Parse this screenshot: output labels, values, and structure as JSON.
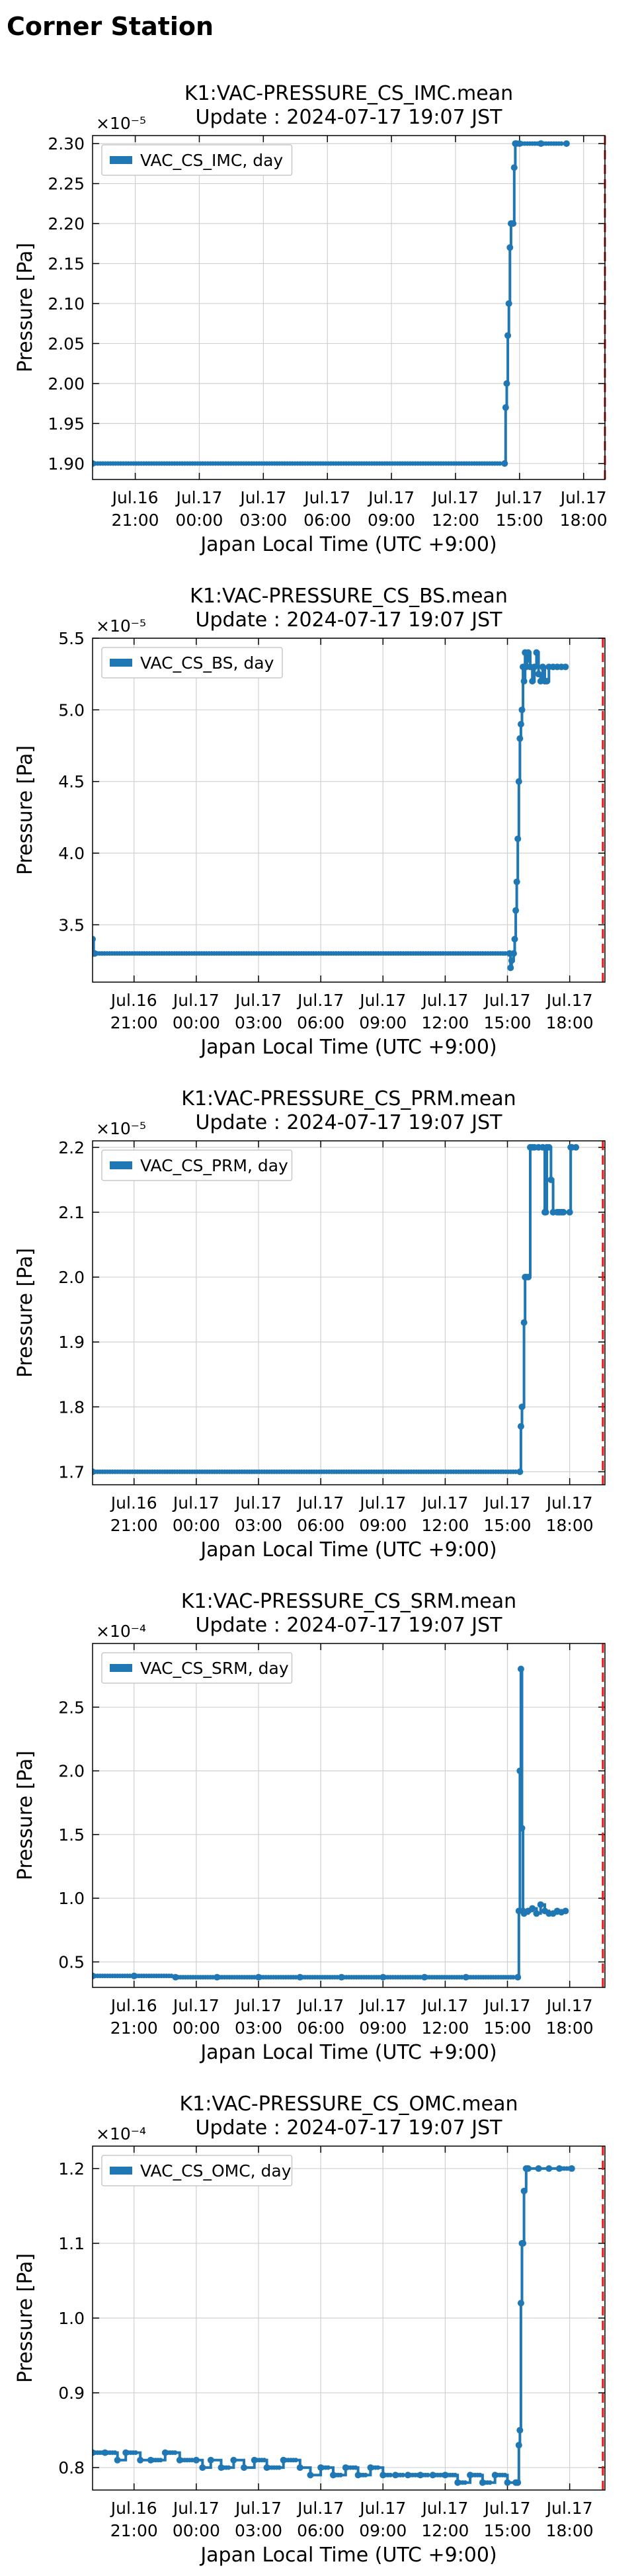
{
  "page": {
    "title": "Corner Station"
  },
  "chart_data": [
    {
      "type": "line",
      "title": "K1:VAC-PRESSURE_CS_IMC.mean",
      "subtitle": "Update : 2024-07-17 19:07 JST",
      "xlabel": "Japan Local Time (UTC +9:00)",
      "ylabel": "Pressure [Pa]",
      "y_exponent": "×10⁻⁵",
      "xlim": [
        0,
        24
      ],
      "ylim": [
        1.88,
        2.31
      ],
      "yticks": [
        1.9,
        1.95,
        2.0,
        2.05,
        2.1,
        2.15,
        2.2,
        2.25,
        2.3
      ],
      "ytick_labels": [
        "1.90",
        "1.95",
        "2.00",
        "2.05",
        "2.10",
        "2.15",
        "2.20",
        "2.25",
        "2.30"
      ],
      "xticks": [
        2,
        5,
        8,
        11,
        14,
        17,
        20,
        23
      ],
      "xtick_labels": [
        [
          "Jul.16",
          "21:00"
        ],
        [
          "Jul.17",
          "00:00"
        ],
        [
          "Jul.17",
          "03:00"
        ],
        [
          "Jul.17",
          "06:00"
        ],
        [
          "Jul.17",
          "09:00"
        ],
        [
          "Jul.17",
          "12:00"
        ],
        [
          "Jul.17",
          "15:00"
        ],
        [
          "Jul.17",
          "18:00"
        ]
      ],
      "current_time": 24.0,
      "grid": true,
      "legend_position": "top-left",
      "series": [
        {
          "name": "VAC_CS_IMC, day",
          "color": "#1f77b4",
          "x": [
            0,
            19.3,
            19.35,
            19.4,
            19.45,
            19.5,
            19.55,
            19.6,
            19.7,
            19.75,
            19.8,
            19.85,
            20,
            21,
            22.2
          ],
          "y": [
            1.9,
            1.9,
            1.97,
            2.0,
            2.06,
            2.1,
            2.17,
            2.2,
            2.2,
            2.27,
            2.3,
            2.3,
            2.3,
            2.3,
            2.3
          ]
        }
      ]
    },
    {
      "type": "line",
      "title": "K1:VAC-PRESSURE_CS_BS.mean",
      "subtitle": "Update : 2024-07-17 19:07 JST",
      "xlabel": "Japan Local Time (UTC +9:00)",
      "ylabel": "Pressure [Pa]",
      "y_exponent": "×10⁻⁵",
      "xlim": [
        0,
        24.7
      ],
      "ylim": [
        3.1,
        5.5
      ],
      "yticks": [
        3.5,
        4.0,
        4.5,
        5.0,
        5.5
      ],
      "ytick_labels": [
        "3.5",
        "4.0",
        "4.5",
        "5.0",
        "5.5"
      ],
      "xticks": [
        2,
        5,
        8,
        11,
        14,
        17,
        20,
        23
      ],
      "xtick_labels": [
        [
          "Jul.16",
          "21:00"
        ],
        [
          "Jul.17",
          "00:00"
        ],
        [
          "Jul.17",
          "03:00"
        ],
        [
          "Jul.17",
          "06:00"
        ],
        [
          "Jul.17",
          "09:00"
        ],
        [
          "Jul.17",
          "12:00"
        ],
        [
          "Jul.17",
          "15:00"
        ],
        [
          "Jul.17",
          "18:00"
        ]
      ],
      "current_time": 24.6,
      "grid": true,
      "legend_position": "top-left",
      "series": [
        {
          "name": "VAC_CS_BS, day",
          "color": "#1f77b4",
          "x": [
            0,
            0.05,
            0.1,
            20.1,
            20.15,
            20.2,
            20.3,
            20.35,
            20.4,
            20.45,
            20.5,
            20.55,
            20.6,
            20.65,
            20.7,
            20.75,
            20.8,
            20.85,
            20.9,
            20.95,
            21.0,
            21.1,
            21.2,
            21.3,
            21.4,
            21.5,
            21.6,
            21.7,
            21.8,
            21.9,
            22.0,
            22.2,
            22.4,
            22.6,
            22.8
          ],
          "y": [
            3.4,
            3.3,
            3.3,
            3.3,
            3.2,
            3.25,
            3.3,
            3.4,
            3.6,
            3.8,
            4.1,
            4.5,
            4.8,
            4.9,
            5.0,
            5.3,
            5.2,
            5.4,
            5.3,
            5.35,
            5.4,
            5.3,
            5.2,
            5.3,
            5.4,
            5.25,
            5.2,
            5.3,
            5.2,
            5.2,
            5.3,
            5.3,
            5.3,
            5.3,
            5.3
          ]
        }
      ]
    },
    {
      "type": "line",
      "title": "K1:VAC-PRESSURE_CS_PRM.mean",
      "subtitle": "Update : 2024-07-17 19:07 JST",
      "xlabel": "Japan Local Time (UTC +9:00)",
      "ylabel": "Pressure [Pa]",
      "y_exponent": "×10⁻⁵",
      "xlim": [
        0,
        24.7
      ],
      "ylim": [
        1.68,
        2.21
      ],
      "yticks": [
        1.7,
        1.8,
        1.9,
        2.0,
        2.1,
        2.2
      ],
      "ytick_labels": [
        "1.7",
        "1.8",
        "1.9",
        "2.0",
        "2.1",
        "2.2"
      ],
      "xticks": [
        2,
        5,
        8,
        11,
        14,
        17,
        20,
        23
      ],
      "xtick_labels": [
        [
          "Jul.16",
          "21:00"
        ],
        [
          "Jul.17",
          "00:00"
        ],
        [
          "Jul.17",
          "03:00"
        ],
        [
          "Jul.17",
          "06:00"
        ],
        [
          "Jul.17",
          "09:00"
        ],
        [
          "Jul.17",
          "12:00"
        ],
        [
          "Jul.17",
          "15:00"
        ],
        [
          "Jul.17",
          "18:00"
        ]
      ],
      "current_time": 24.6,
      "grid": true,
      "legend_position": "top-left",
      "series": [
        {
          "name": "VAC_CS_PRM, day",
          "color": "#1f77b4",
          "x": [
            0,
            20.6,
            20.65,
            20.7,
            20.8,
            20.85,
            20.9,
            21.0,
            21.1,
            21.2,
            21.3,
            21.5,
            21.7,
            21.8,
            21.85,
            21.9,
            22.0,
            22.1,
            22.2,
            22.4,
            22.5,
            22.6,
            22.7,
            23.0,
            23.05,
            23.1,
            23.3
          ],
          "y": [
            1.7,
            1.7,
            1.77,
            1.8,
            1.93,
            2.0,
            2.0,
            2.0,
            2.2,
            2.2,
            2.2,
            2.2,
            2.2,
            2.1,
            2.1,
            2.2,
            2.2,
            2.15,
            2.1,
            2.1,
            2.1,
            2.1,
            2.1,
            2.1,
            2.2,
            2.2,
            2.2
          ]
        }
      ]
    },
    {
      "type": "line",
      "title": "K1:VAC-PRESSURE_CS_SRM.mean",
      "subtitle": "Update : 2024-07-17 19:07 JST",
      "xlabel": "Japan Local Time (UTC +9:00)",
      "ylabel": "Pressure [Pa]",
      "y_exponent": "×10⁻⁴",
      "xlim": [
        0,
        24.7
      ],
      "ylim": [
        0.3,
        3.0
      ],
      "yticks": [
        0.5,
        1.0,
        1.5,
        2.0,
        2.5
      ],
      "ytick_labels": [
        "0.5",
        "1.0",
        "1.5",
        "2.0",
        "2.5"
      ],
      "xticks": [
        2,
        5,
        8,
        11,
        14,
        17,
        20,
        23
      ],
      "xtick_labels": [
        [
          "Jul.16",
          "21:00"
        ],
        [
          "Jul.17",
          "00:00"
        ],
        [
          "Jul.17",
          "03:00"
        ],
        [
          "Jul.17",
          "06:00"
        ],
        [
          "Jul.17",
          "09:00"
        ],
        [
          "Jul.17",
          "12:00"
        ],
        [
          "Jul.17",
          "15:00"
        ],
        [
          "Jul.17",
          "18:00"
        ]
      ],
      "current_time": 24.6,
      "grid": true,
      "legend_position": "top-left",
      "series": [
        {
          "name": "VAC_CS_SRM, day",
          "color": "#1f77b4",
          "x": [
            0,
            2,
            4,
            6,
            8,
            10,
            12,
            14,
            16,
            18,
            20.5,
            20.55,
            20.6,
            20.65,
            20.7,
            20.75,
            20.8,
            21.0,
            21.2,
            21.4,
            21.6,
            21.8,
            22.0,
            22.2,
            22.4,
            22.6,
            22.8
          ],
          "y": [
            0.39,
            0.39,
            0.38,
            0.38,
            0.38,
            0.38,
            0.38,
            0.38,
            0.38,
            0.38,
            0.38,
            0.9,
            2.0,
            2.8,
            1.55,
            0.9,
            0.88,
            0.9,
            0.92,
            0.88,
            0.95,
            0.9,
            0.88,
            0.88,
            0.9,
            0.89,
            0.9
          ]
        }
      ]
    },
    {
      "type": "line",
      "title": "K1:VAC-PRESSURE_CS_OMC.mean",
      "subtitle": "Update : 2024-07-17 19:07 JST",
      "xlabel": "Japan Local Time (UTC +9:00)",
      "ylabel": "Pressure [Pa]",
      "y_exponent": "×10⁻⁴",
      "xlim": [
        0,
        24.7
      ],
      "ylim": [
        0.77,
        1.23
      ],
      "yticks": [
        0.8,
        0.9,
        1.0,
        1.1,
        1.2
      ],
      "ytick_labels": [
        "0.8",
        "0.9",
        "1.0",
        "1.1",
        "1.2"
      ],
      "xticks": [
        2,
        5,
        8,
        11,
        14,
        17,
        20,
        23
      ],
      "xtick_labels": [
        [
          "Jul.16",
          "21:00"
        ],
        [
          "Jul.17",
          "00:00"
        ],
        [
          "Jul.17",
          "03:00"
        ],
        [
          "Jul.17",
          "06:00"
        ],
        [
          "Jul.17",
          "09:00"
        ],
        [
          "Jul.17",
          "12:00"
        ],
        [
          "Jul.17",
          "15:00"
        ],
        [
          "Jul.17",
          "18:00"
        ]
      ],
      "current_time": 24.6,
      "grid": true,
      "legend_position": "top-left",
      "series": [
        {
          "name": "VAC_CS_OMC, day",
          "color": "#1f77b4",
          "x": [
            0,
            0.6,
            1.2,
            1.6,
            2.3,
            2.8,
            3.5,
            4.2,
            5.0,
            5.3,
            5.7,
            6.2,
            6.8,
            7.3,
            7.8,
            8.4,
            9.2,
            10.0,
            10.5,
            11.0,
            11.6,
            12.2,
            12.8,
            13.4,
            14.0,
            14.6,
            15.2,
            15.8,
            16.4,
            17.0,
            17.6,
            18.2,
            18.8,
            19.4,
            20.0,
            20.4,
            20.5,
            20.55,
            20.6,
            20.65,
            20.7,
            20.75,
            20.8,
            20.9,
            21.0,
            21.5,
            22.0,
            22.5,
            23.1
          ],
          "y": [
            0.82,
            0.82,
            0.81,
            0.82,
            0.81,
            0.81,
            0.82,
            0.81,
            0.81,
            0.8,
            0.81,
            0.8,
            0.81,
            0.8,
            0.81,
            0.8,
            0.81,
            0.8,
            0.79,
            0.8,
            0.79,
            0.8,
            0.79,
            0.8,
            0.79,
            0.79,
            0.79,
            0.79,
            0.79,
            0.79,
            0.78,
            0.79,
            0.78,
            0.79,
            0.78,
            0.78,
            0.78,
            0.83,
            0.85,
            1.02,
            1.1,
            1.1,
            1.17,
            1.2,
            1.2,
            1.2,
            1.2,
            1.2,
            1.2
          ]
        }
      ]
    }
  ]
}
